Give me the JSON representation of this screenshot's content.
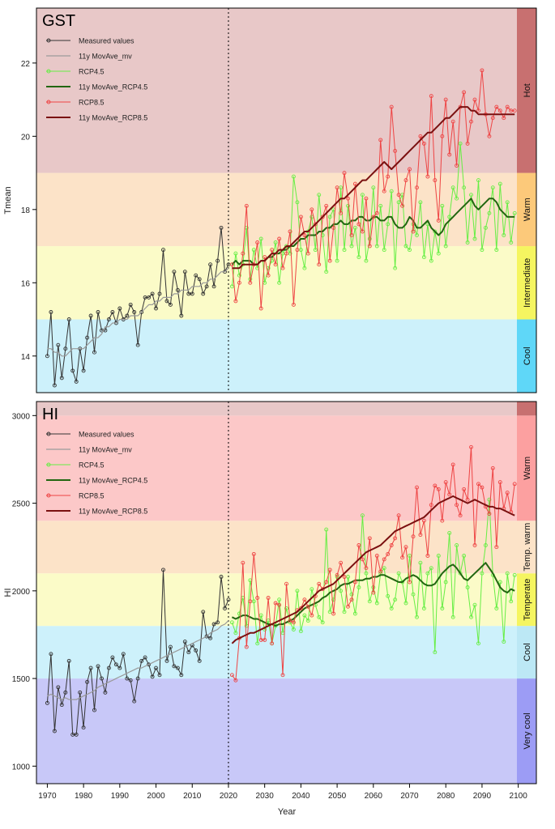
{
  "figure": {
    "xlabel": "Year",
    "x_ticks": [
      1970,
      1980,
      1990,
      2000,
      2010,
      2020,
      2030,
      2040,
      2050,
      2060,
      2070,
      2080,
      2090,
      2100
    ]
  },
  "legend": [
    "Measured values",
    "11y MovAve_mv",
    "RCP4.5",
    "11y MovAve_RCP4.5",
    "RCP8.5",
    "11y MovAve_RCP8.5"
  ],
  "colors": {
    "measured": "#333333",
    "measured_ma": "#9a9a9a",
    "rcp45": "#66ee44",
    "rcp45_ma": "#226611",
    "rcp85": "#ee4444",
    "rcp85_ma": "#7a1010",
    "divider": "#000000"
  },
  "chart_data": [
    {
      "type": "line",
      "title": "GST",
      "ylabel": "Tmean",
      "xlim": [
        1967,
        2105
      ],
      "ylim": [
        13,
        23.5
      ],
      "y_ticks": [
        14,
        16,
        18,
        20,
        22
      ],
      "present_year": 2020,
      "zones": [
        {
          "label": "Cool",
          "from": 13,
          "to": 15,
          "color": "#5fd7f8",
          "bg": "#cdf1fb"
        },
        {
          "label": "Intermediate",
          "from": 15,
          "to": 17,
          "color": "#f5f560",
          "bg": "#fbfbc8"
        },
        {
          "label": "Warm",
          "from": 17,
          "to": 19,
          "color": "#fcc97a",
          "bg": "#fce3c8"
        },
        {
          "label": "Hot",
          "from": 19,
          "to": 23.5,
          "color": "#c87070",
          "bg": "#e8c8c8"
        }
      ],
      "series": [
        {
          "name": "Measured values",
          "x_start": 1970,
          "values": [
            14.0,
            15.2,
            13.2,
            14.3,
            13.4,
            14.2,
            15.0,
            13.6,
            13.3,
            14.2,
            13.6,
            14.5,
            15.1,
            14.1,
            15.2,
            14.7,
            14.7,
            15.0,
            15.2,
            14.9,
            15.3,
            15.0,
            15.1,
            15.4,
            15.2,
            14.3,
            15.2,
            15.6,
            15.6,
            15.7,
            15.3,
            15.7,
            16.9,
            15.5,
            15.4,
            16.3,
            15.8,
            15.1,
            16.3,
            15.7,
            15.7,
            16.2,
            16.1,
            15.7,
            15.9,
            16.5,
            15.9,
            16.6,
            17.5,
            16.3,
            16.5
          ]
        },
        {
          "name": "11y MovAve_mv",
          "x_start": 1970,
          "values": [
            14.2,
            14.2,
            14.1,
            14.1,
            14.0,
            14.0,
            14.1,
            14.2,
            14.2,
            14.2,
            14.2,
            14.3,
            14.4,
            14.5,
            14.5,
            14.6,
            14.8,
            14.8,
            14.9,
            14.9,
            15.0,
            15.0,
            15.0,
            15.1,
            15.1,
            15.1,
            15.2,
            15.3,
            15.4,
            15.4,
            15.5,
            15.5,
            15.6,
            15.6,
            15.6,
            15.7,
            15.7,
            15.8,
            15.8,
            15.8,
            15.9,
            15.9,
            15.9,
            16.0,
            16.0,
            16.1,
            16.1,
            16.2,
            16.3,
            16.3,
            16.4
          ]
        },
        {
          "name": "RCP4.5",
          "x_start": 2021,
          "values": [
            15.9,
            16.8,
            16.2,
            16.5,
            17.5,
            16.1,
            16.9,
            16.4,
            17.2,
            16.0,
            16.4,
            16.6,
            17.1,
            16.0,
            16.8,
            17.0,
            16.8,
            18.9,
            18.2,
            16.9,
            16.4,
            17.4,
            17.8,
            16.9,
            18.4,
            17.3,
            16.3,
            17.8,
            18.0,
            16.6,
            18.6,
            16.9,
            18.1,
            17.0,
            17.5,
            16.7,
            18.4,
            16.6,
            17.2,
            18.6,
            17.0,
            18.1,
            16.9,
            17.6,
            18.5,
            16.4,
            18.2,
            18.4,
            17.0,
            16.9,
            17.6,
            17.3,
            18.2,
            16.7,
            17.6,
            16.6,
            17.4,
            16.8,
            18.1,
            17.0,
            17.8,
            18.6,
            18.3,
            19.8,
            18.6,
            17.1,
            18.4,
            17.2,
            18.8,
            16.9,
            17.5,
            17.9,
            18.6,
            16.9,
            18.7,
            17.3,
            18.2,
            17.1,
            17.9
          ]
        },
        {
          "name": "11y MovAve_RCP4.5",
          "x_start": 2021,
          "values": [
            16.5,
            16.6,
            16.5,
            16.6,
            16.6,
            16.6,
            16.5,
            16.5,
            16.6,
            16.6,
            16.7,
            16.7,
            16.8,
            16.8,
            16.9,
            16.9,
            17.0,
            17.0,
            17.1,
            17.2,
            17.2,
            17.3,
            17.3,
            17.3,
            17.4,
            17.4,
            17.5,
            17.5,
            17.6,
            17.6,
            17.7,
            17.6,
            17.6,
            17.7,
            17.7,
            17.8,
            17.8,
            17.7,
            17.7,
            17.8,
            17.8,
            17.7,
            17.7,
            17.8,
            17.8,
            17.6,
            17.5,
            17.5,
            17.6,
            17.8,
            17.7,
            17.5,
            17.5,
            17.6,
            17.7,
            17.5,
            17.4,
            17.3,
            17.4,
            17.6,
            17.7,
            17.8,
            17.9,
            18.0,
            18.1,
            18.2,
            18.3,
            18.1,
            18.0,
            18.1,
            18.2,
            18.3,
            18.3,
            18.2,
            18.0,
            17.9,
            17.8,
            17.8,
            17.8
          ]
        },
        {
          "name": "RCP8.5",
          "x_start": 2021,
          "values": [
            16.5,
            15.5,
            16.0,
            16.8,
            18.1,
            16.0,
            16.5,
            17.1,
            15.3,
            16.7,
            16.2,
            16.9,
            16.5,
            17.2,
            16.4,
            16.8,
            17.4,
            15.4,
            16.9,
            17.8,
            17.3,
            16.8,
            18.0,
            17.6,
            16.5,
            17.8,
            18.1,
            16.6,
            17.5,
            18.6,
            17.9,
            19.0,
            18.3,
            17.3,
            18.7,
            17.6,
            17.4,
            18.3,
            17.0,
            17.8,
            17.9,
            19.9,
            18.5,
            18.9,
            20.8,
            19.6,
            18.4,
            18.1,
            18.8,
            19.1,
            17.4,
            18.6,
            20.0,
            19.8,
            18.9,
            21.1,
            18.8,
            17.7,
            20.0,
            21.0,
            19.5,
            20.4,
            19.2,
            20.8,
            21.2,
            19.8,
            20.4,
            21.0,
            20.7,
            21.8,
            20.6,
            20.0,
            20.5,
            20.8,
            20.7,
            20.5,
            20.8,
            20.7,
            20.7
          ]
        },
        {
          "name": "11y MovAve_RCP8.5",
          "x_start": 2021,
          "values": [
            16.4,
            16.4,
            16.4,
            16.5,
            16.5,
            16.5,
            16.5,
            16.5,
            16.6,
            16.6,
            16.7,
            16.8,
            16.8,
            16.9,
            16.9,
            17.0,
            17.0,
            17.1,
            17.2,
            17.3,
            17.4,
            17.4,
            17.5,
            17.6,
            17.7,
            17.8,
            17.9,
            18.0,
            18.1,
            18.2,
            18.3,
            18.3,
            18.4,
            18.5,
            18.6,
            18.7,
            18.8,
            18.8,
            18.9,
            19.0,
            19.1,
            19.2,
            19.3,
            19.2,
            19.1,
            19.2,
            19.3,
            19.4,
            19.5,
            19.6,
            19.7,
            19.8,
            19.9,
            20.0,
            20.1,
            20.1,
            20.2,
            20.3,
            20.4,
            20.5,
            20.5,
            20.6,
            20.7,
            20.8,
            20.8,
            20.8,
            20.7,
            20.7,
            20.6,
            20.6,
            20.6,
            20.6,
            20.6,
            20.6,
            20.6,
            20.6,
            20.6,
            20.6,
            20.6
          ]
        }
      ]
    },
    {
      "type": "line",
      "title": "HI",
      "ylabel": "HI",
      "xlim": [
        1967,
        2105
      ],
      "ylim": [
        900,
        3080
      ],
      "y_ticks": [
        1000,
        1500,
        2000,
        2500,
        3000
      ],
      "present_year": 2020,
      "zones": [
        {
          "label": "Very cool",
          "from": 900,
          "to": 1500,
          "color": "#9c9cf5",
          "bg": "#c8c8f8"
        },
        {
          "label": "Cool",
          "from": 1500,
          "to": 1800,
          "color": "#bce8f5",
          "bg": "#cdf1fb"
        },
        {
          "label": "Temperate",
          "from": 1800,
          "to": 2100,
          "color": "#f5f560",
          "bg": "#fbfbc8"
        },
        {
          "label": "Temp. warm",
          "from": 2100,
          "to": 2400,
          "color": "#fce3c8",
          "bg": "#fce3c8"
        },
        {
          "label": "Warm",
          "from": 2400,
          "to": 3000,
          "color": "#fca0a0",
          "bg": "#fcc8c8"
        },
        {
          "label": "",
          "from": 3000,
          "to": 3080,
          "color": "#c87070",
          "bg": "#e8c8c8"
        }
      ],
      "series": [
        {
          "name": "Measured values",
          "x_start": 1970,
          "values": [
            1360,
            1640,
            1200,
            1450,
            1350,
            1420,
            1600,
            1180,
            1180,
            1420,
            1220,
            1480,
            1560,
            1320,
            1570,
            1500,
            1420,
            1560,
            1620,
            1580,
            1560,
            1640,
            1500,
            1490,
            1370,
            1500,
            1600,
            1620,
            1580,
            1510,
            1560,
            1520,
            2120,
            1600,
            1680,
            1570,
            1560,
            1520,
            1710,
            1650,
            1690,
            1660,
            1600,
            1880,
            1740,
            1730,
            1810,
            1820,
            2080,
            1900,
            1950
          ]
        },
        {
          "name": "11y MovAve_mv",
          "x_start": 1970,
          "values": [
            1400,
            1410,
            1400,
            1390,
            1380,
            1390,
            1380,
            1380,
            1380,
            1390,
            1400,
            1410,
            1420,
            1430,
            1450,
            1460,
            1470,
            1480,
            1490,
            1500,
            1510,
            1520,
            1530,
            1540,
            1550,
            1560,
            1560,
            1570,
            1580,
            1590,
            1600,
            1610,
            1620,
            1630,
            1640,
            1650,
            1660,
            1670,
            1680,
            1690,
            1700,
            1710,
            1720,
            1730,
            1740,
            1760,
            1770,
            1780,
            1800,
            1810,
            1830
          ]
        },
        {
          "name": "RCP4.5",
          "x_start": 2021,
          "values": [
            1820,
            1760,
            1870,
            1960,
            1800,
            2060,
            1940,
            1700,
            1860,
            1780,
            1830,
            1700,
            1800,
            1950,
            1760,
            1900,
            1820,
            1780,
            2000,
            1770,
            1860,
            1830,
            2010,
            1920,
            1850,
            1820,
            2350,
            1880,
            1950,
            2080,
            2000,
            1880,
            2080,
            1980,
            1870,
            2020,
            2430,
            2100,
            1940,
            2020,
            1930,
            2100,
            2130,
            1970,
            1900,
            1950,
            2100,
            2050,
            1930,
            2200,
            1980,
            1850,
            2160,
            1900,
            2100,
            2130,
            1650,
            2200,
            1900,
            2050,
            2330,
            1850,
            2260,
            2100,
            2200,
            2020,
            1850,
            1920,
            1700,
            2100,
            2260,
            2520,
            2090,
            1900,
            2050,
            1710,
            2100,
            1940,
            2090
          ]
        },
        {
          "name": "11y MovAve_RCP4.5",
          "x_start": 2021,
          "values": [
            1850,
            1840,
            1850,
            1860,
            1860,
            1850,
            1840,
            1840,
            1830,
            1820,
            1810,
            1810,
            1800,
            1810,
            1810,
            1820,
            1830,
            1840,
            1860,
            1880,
            1900,
            1910,
            1920,
            1930,
            1940,
            1960,
            1970,
            1990,
            2000,
            2010,
            2030,
            2040,
            2040,
            2050,
            2060,
            2060,
            2060,
            2070,
            2070,
            2080,
            2080,
            2090,
            2090,
            2080,
            2070,
            2060,
            2050,
            2050,
            2070,
            2080,
            2090,
            2080,
            2060,
            2040,
            2030,
            2030,
            2040,
            2070,
            2100,
            2120,
            2140,
            2150,
            2130,
            2100,
            2070,
            2060,
            2080,
            2100,
            2120,
            2140,
            2160,
            2130,
            2100,
            2060,
            2020,
            2000,
            1990,
            2010,
            2000
          ]
        },
        {
          "name": "RCP8.5",
          "x_start": 2021,
          "values": [
            1520,
            1490,
            1730,
            2160,
            1680,
            1940,
            2210,
            1960,
            1720,
            1720,
            1960,
            1700,
            1930,
            1920,
            1520,
            2040,
            1830,
            1820,
            1890,
            1900,
            1950,
            1910,
            1860,
            1970,
            2040,
            2010,
            2050,
            2120,
            1870,
            2090,
            2160,
            2080,
            1910,
            1950,
            2050,
            2260,
            2180,
            2130,
            2300,
            1990,
            2200,
            2110,
            2180,
            2210,
            2260,
            2300,
            2430,
            2190,
            2250,
            2050,
            2310,
            2590,
            2320,
            2400,
            2200,
            2490,
            2600,
            2580,
            2400,
            2620,
            2550,
            2720,
            2490,
            2430,
            2580,
            2520,
            2820,
            2260,
            2610,
            2590,
            2480,
            2440,
            2700,
            2250,
            2620,
            2470,
            2560,
            2450,
            2610
          ]
        },
        {
          "name": "11y MovAve_RCP8.5",
          "x_start": 2021,
          "values": [
            1700,
            1720,
            1730,
            1740,
            1750,
            1760,
            1760,
            1770,
            1780,
            1790,
            1800,
            1810,
            1820,
            1830,
            1840,
            1850,
            1860,
            1870,
            1880,
            1900,
            1920,
            1940,
            1960,
            1980,
            2000,
            2010,
            2020,
            2030,
            2040,
            2060,
            2080,
            2100,
            2120,
            2140,
            2160,
            2180,
            2200,
            2220,
            2230,
            2240,
            2250,
            2260,
            2280,
            2300,
            2320,
            2340,
            2350,
            2360,
            2370,
            2380,
            2390,
            2400,
            2410,
            2420,
            2440,
            2460,
            2480,
            2500,
            2510,
            2520,
            2530,
            2540,
            2530,
            2520,
            2510,
            2500,
            2510,
            2520,
            2510,
            2500,
            2490,
            2480,
            2480,
            2470,
            2470,
            2460,
            2450,
            2440,
            2430
          ]
        }
      ]
    }
  ]
}
